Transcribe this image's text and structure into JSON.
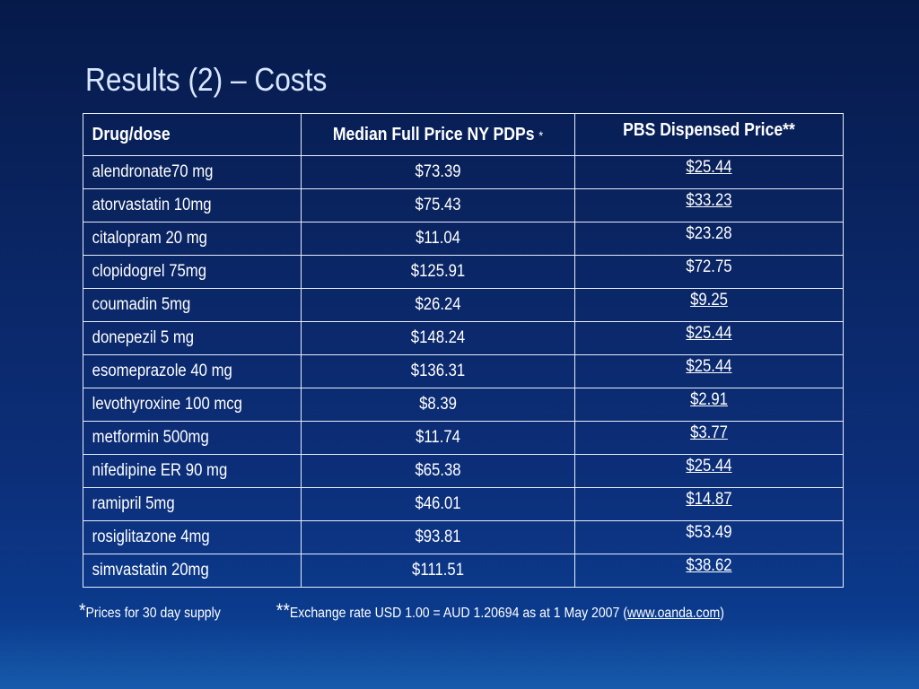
{
  "slide": {
    "title": "Results (2) – Costs"
  },
  "table": {
    "headers": {
      "drug": "Drug/dose",
      "median_price": "Median Full Price NY PDPs",
      "median_price_mark": "*",
      "pbs_price": "PBS Dispensed Price**"
    },
    "rows": [
      {
        "drug": "alendronate70 mg",
        "median_price": "$73.39",
        "pbs_price": "$25.44"
      },
      {
        "drug": "atorvastatin 10mg",
        "median_price": "$75.43",
        "pbs_price": "$33.23"
      },
      {
        "drug": "citalopram 20 mg",
        "median_price": "$11.04",
        "pbs_price": "$23.28"
      },
      {
        "drug": "clopidogrel 75mg",
        "median_price": "$125.91",
        "pbs_price": "$72.75"
      },
      {
        "drug": "coumadin 5mg",
        "median_price": "$26.24",
        "pbs_price": "$9.25"
      },
      {
        "drug": "donepezil 5 mg",
        "median_price": "$148.24",
        "pbs_price": "$25.44"
      },
      {
        "drug": "esomeprazole 40 mg",
        "median_price": "$136.31",
        "pbs_price": "$25.44"
      },
      {
        "drug": "levothyroxine 100 mcg",
        "median_price": "$8.39",
        "pbs_price": "$2.91"
      },
      {
        "drug": "metformin 500mg",
        "median_price": "$11.74",
        "pbs_price": "$3.77"
      },
      {
        "drug": "nifedipine ER 90 mg",
        "median_price": "$65.38",
        "pbs_price": "$25.44"
      },
      {
        "drug": "ramipril 5mg",
        "median_price": "$46.01",
        "pbs_price": "$14.87"
      },
      {
        "drug": "rosiglitazone 4mg",
        "median_price": "$93.81",
        "pbs_price": "$53.49"
      },
      {
        "drug": "simvastatin 20mg",
        "median_price": "$111.51",
        "pbs_price": "$38.62"
      }
    ]
  },
  "footnotes": {
    "note1_mark": "*",
    "note1_text": "Prices for 30 day supply",
    "note2_mark": "**",
    "note2_text": "Exchange rate USD 1.00  = AUD 1.20694 as at 1 May 2007 (",
    "note2_link": "www.oanda.com",
    "note2_close": ")"
  }
}
